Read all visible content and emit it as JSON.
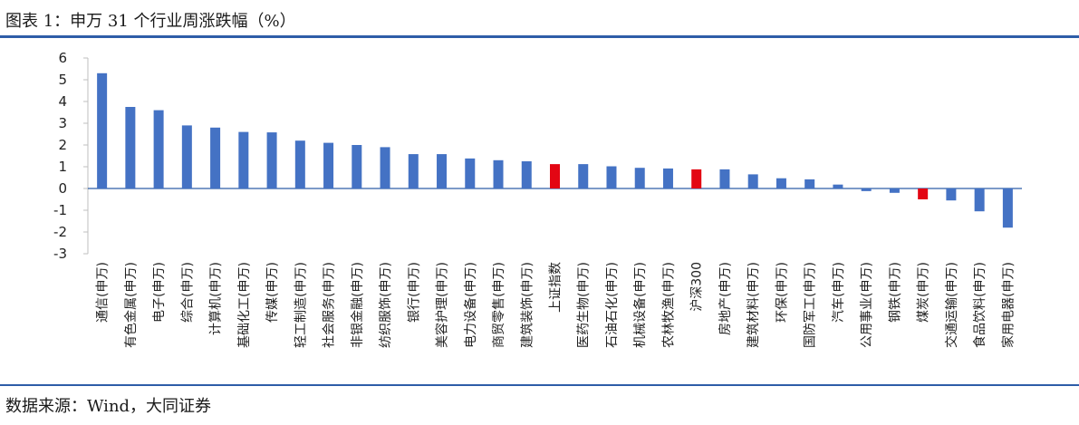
{
  "header": {
    "title": "图表 1：申万 31 个行业周涨跌幅（%）"
  },
  "footer": {
    "source": "数据来源：Wind，大同证券"
  },
  "colors": {
    "bar": "#4472c4",
    "highlight": "#e30613",
    "rule": "#2e5da8"
  },
  "chart_data": {
    "type": "bar",
    "title": "",
    "xlabel": "",
    "ylabel": "",
    "ylim": [
      -3,
      6
    ],
    "yticks": [
      6,
      5,
      4,
      3,
      2,
      1,
      0,
      -1,
      -2,
      -3
    ],
    "grid": false,
    "categories": [
      "通信(申万)",
      "有色金属(申万)",
      "电子(申万)",
      "综合(申万)",
      "计算机(申万)",
      "基础化工(申万)",
      "传媒(申万)",
      "轻工制造(申万)",
      "社会服务(申万)",
      "非银金融(申万)",
      "纺织服饰(申万)",
      "银行(申万)",
      "美容护理(申万)",
      "电力设备(申万)",
      "商贸零售(申万)",
      "建筑装饰(申万)",
      "上证指数",
      "医药生物(申万)",
      "石油石化(申万)",
      "机械设备(申万)",
      "农林牧渔(申万)",
      "沪深300",
      "房地产(申万)",
      "建筑材料(申万)",
      "环保(申万)",
      "国防军工(申万)",
      "汽车(申万)",
      "公用事业(申万)",
      "钢铁(申万)",
      "煤炭(申万)",
      "交通运输(申万)",
      "食品饮料(申万)",
      "家用电器(申万)"
    ],
    "values": [
      5.3,
      3.75,
      3.6,
      2.9,
      2.8,
      2.6,
      2.58,
      2.2,
      2.1,
      2.0,
      1.9,
      1.58,
      1.58,
      1.38,
      1.3,
      1.25,
      1.12,
      1.12,
      1.02,
      0.95,
      0.92,
      0.88,
      0.88,
      0.65,
      0.47,
      0.42,
      0.18,
      -0.12,
      -0.2,
      -0.5,
      -0.55,
      -1.05,
      -1.8
    ],
    "highlighted": [
      "上证指数",
      "沪深300",
      "煤炭(申万)"
    ]
  }
}
